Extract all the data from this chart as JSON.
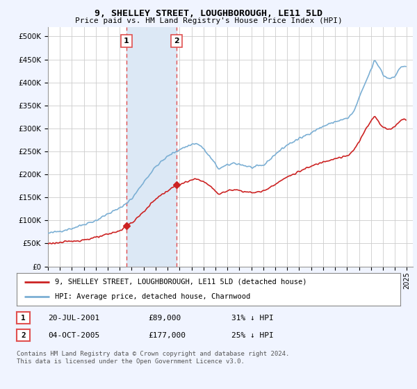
{
  "title": "9, SHELLEY STREET, LOUGHBOROUGH, LE11 5LD",
  "subtitle": "Price paid vs. HM Land Registry's House Price Index (HPI)",
  "ylim": [
    0,
    520000
  ],
  "yticks": [
    0,
    50000,
    100000,
    150000,
    200000,
    250000,
    300000,
    350000,
    400000,
    450000,
    500000
  ],
  "xlim_start": 1995.0,
  "xlim_end": 2025.5,
  "bg_color": "#f0f4ff",
  "plot_bg_color": "#ffffff",
  "grid_color": "#cccccc",
  "hpi_color": "#7bafd4",
  "price_color": "#cc2222",
  "sale1_date": 2001.55,
  "sale1_price": 89000,
  "sale1_label": "1",
  "sale2_date": 2005.75,
  "sale2_price": 177000,
  "sale2_label": "2",
  "shade_color": "#dce8f5",
  "dashed_color": "#e05050",
  "legend1": "9, SHELLEY STREET, LOUGHBOROUGH, LE11 5LD (detached house)",
  "legend2": "HPI: Average price, detached house, Charnwood",
  "table_row1": [
    "1",
    "20-JUL-2001",
    "£89,000",
    "31% ↓ HPI"
  ],
  "table_row2": [
    "2",
    "04-OCT-2005",
    "£177,000",
    "25% ↓ HPI"
  ],
  "footnote": "Contains HM Land Registry data © Crown copyright and database right 2024.\nThis data is licensed under the Open Government Licence v3.0."
}
